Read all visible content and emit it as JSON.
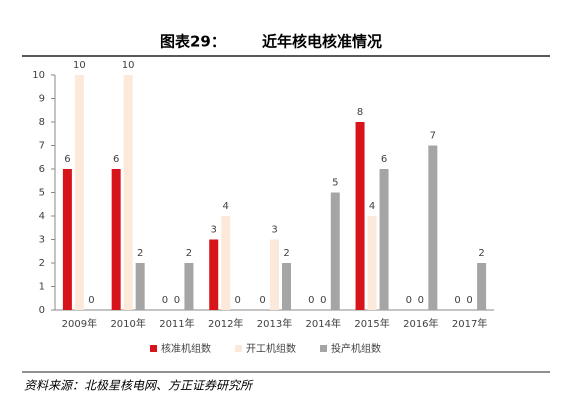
{
  "chart_data": {
    "type": "bar",
    "label": "图表29：",
    "title": "近年核电核准情况",
    "categories": [
      "2009年",
      "2010年",
      "2011年",
      "2012年",
      "2013年",
      "2014年",
      "2015年",
      "2016年",
      "2017年"
    ],
    "series": [
      {
        "name": "核准机组数",
        "color": "#d7141a",
        "values": [
          6,
          6,
          0,
          3,
          0,
          0,
          8,
          0,
          0
        ]
      },
      {
        "name": "开工机组数",
        "color": "#fde9da",
        "values": [
          10,
          10,
          0,
          4,
          3,
          0,
          4,
          0,
          0
        ]
      },
      {
        "name": "投产机组数",
        "color": "#a5a5a5",
        "values": [
          0,
          2,
          2,
          0,
          2,
          5,
          6,
          7,
          2
        ]
      }
    ],
    "ylim": [
      0,
      10
    ],
    "yticks": [
      0,
      1,
      2,
      3,
      4,
      5,
      6,
      7,
      8,
      9,
      10
    ],
    "grid": false,
    "source": "资料来源：北极星核电网、方正证券研究所"
  }
}
